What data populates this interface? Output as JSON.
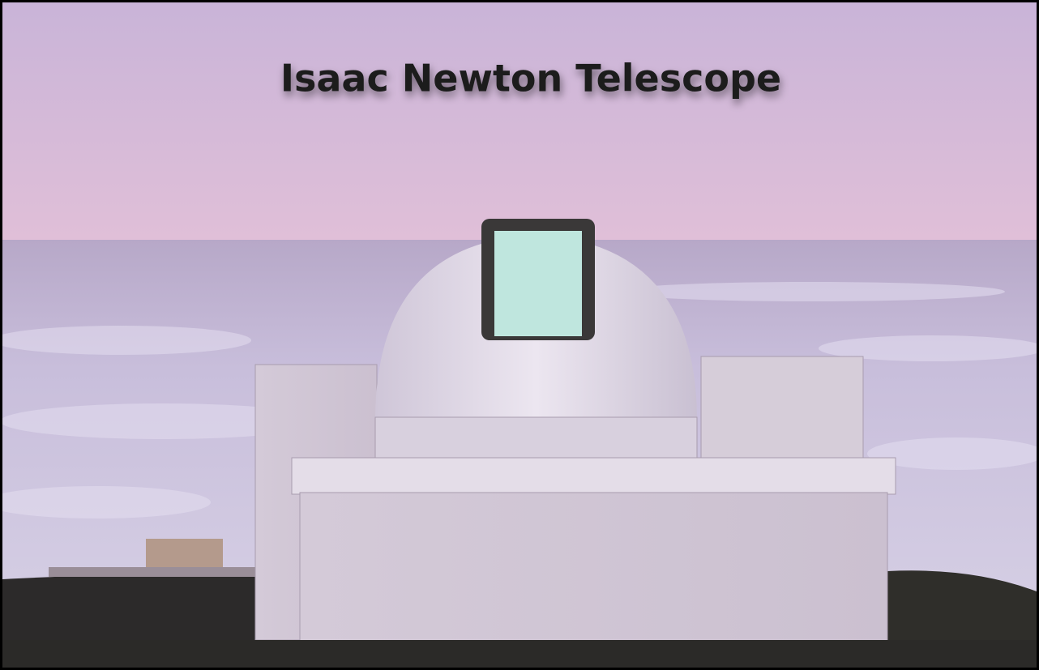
{
  "title": "Isaac Newton Telescope"
}
